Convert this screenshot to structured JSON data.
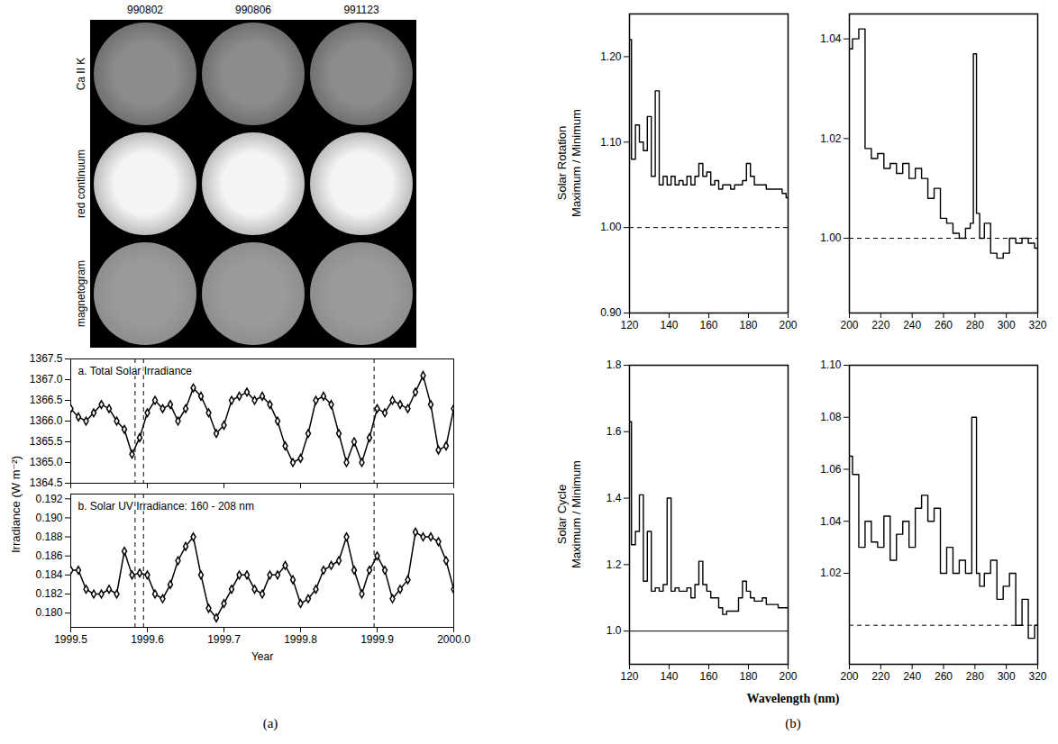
{
  "figure": {
    "panel_labels": [
      "(a)",
      "(b)"
    ],
    "images": {
      "dates": [
        "990802",
        "990806",
        "991123"
      ],
      "rows": [
        "Ca II K",
        "red continuum",
        "magnetogram"
      ]
    },
    "spectra_xlabel": "Wavelength (nm)"
  },
  "chart_data": [
    {
      "type": "line",
      "title": "a. Total Solar Irradiance",
      "ylabel": "Irradiance (W m⁻²)",
      "color": "#000000",
      "marker": "diamond",
      "line_style": "solid",
      "tick_labels": "y",
      "vlines": [
        1999.584,
        1999.595,
        1999.896
      ],
      "x": [
        1999.5,
        1999.51,
        1999.52,
        1999.53,
        1999.54,
        1999.55,
        1999.56,
        1999.57,
        1999.58,
        1999.59,
        1999.6,
        1999.61,
        1999.62,
        1999.63,
        1999.64,
        1999.65,
        1999.66,
        1999.67,
        1999.68,
        1999.69,
        1999.7,
        1999.71,
        1999.72,
        1999.73,
        1999.74,
        1999.75,
        1999.76,
        1999.77,
        1999.78,
        1999.79,
        1999.8,
        1999.81,
        1999.82,
        1999.83,
        1999.84,
        1999.85,
        1999.86,
        1999.87,
        1999.88,
        1999.89,
        1999.9,
        1999.91,
        1999.92,
        1999.93,
        1999.94,
        1999.95,
        1999.96,
        1999.97,
        1999.98,
        1999.99,
        2000.0
      ],
      "values": [
        1366.3,
        1366.1,
        1366.0,
        1366.2,
        1366.4,
        1366.3,
        1366.0,
        1365.8,
        1365.2,
        1365.6,
        1366.2,
        1366.5,
        1366.3,
        1366.4,
        1366.0,
        1366.3,
        1366.8,
        1366.6,
        1366.2,
        1365.7,
        1365.9,
        1366.5,
        1366.6,
        1366.7,
        1366.5,
        1366.6,
        1366.4,
        1366.0,
        1365.4,
        1365.0,
        1365.1,
        1365.7,
        1366.5,
        1366.6,
        1366.4,
        1365.7,
        1365.0,
        1365.5,
        1365.0,
        1365.6,
        1366.3,
        1366.2,
        1366.5,
        1366.4,
        1366.3,
        1366.7,
        1367.1,
        1366.4,
        1365.3,
        1365.4,
        1366.3
      ],
      "xlim": [
        1999.5,
        2000.0
      ],
      "xticks": [
        1999.5,
        1999.6,
        1999.7,
        1999.8,
        1999.9,
        {
          "value": 2000,
          "label": "2000.0"
        }
      ],
      "ylim": [
        1364.5,
        1367.5
      ],
      "yticks": [
        1364.5,
        {
          "value": 1365,
          "label": "1365.0"
        },
        1365.5,
        {
          "value": 1366,
          "label": "1366.0"
        },
        1366.5,
        {
          "value": 1367,
          "label": "1367.0"
        },
        1367.5
      ]
    },
    {
      "type": "line",
      "title": "b. Solar UV Irradiance: 160 - 208 nm",
      "xlabel": "Year",
      "color": "#000000",
      "marker": "diamond",
      "line_style": "solid",
      "vlines": [
        1999.584,
        1999.595,
        1999.896
      ],
      "x": [
        1999.5,
        1999.51,
        1999.52,
        1999.53,
        1999.54,
        1999.55,
        1999.56,
        1999.57,
        1999.58,
        1999.59,
        1999.6,
        1999.61,
        1999.62,
        1999.63,
        1999.64,
        1999.65,
        1999.66,
        1999.67,
        1999.68,
        1999.69,
        1999.7,
        1999.71,
        1999.72,
        1999.73,
        1999.74,
        1999.75,
        1999.76,
        1999.77,
        1999.78,
        1999.79,
        1999.8,
        1999.81,
        1999.82,
        1999.83,
        1999.84,
        1999.85,
        1999.86,
        1999.87,
        1999.88,
        1999.89,
        1999.9,
        1999.91,
        1999.92,
        1999.93,
        1999.94,
        1999.95,
        1999.96,
        1999.97,
        1999.98,
        1999.99,
        2000.0
      ],
      "values": [
        0.1845,
        0.1845,
        0.1825,
        0.182,
        0.182,
        0.1825,
        0.182,
        0.1865,
        0.184,
        0.1842,
        0.184,
        0.182,
        0.1815,
        0.183,
        0.1855,
        0.187,
        0.188,
        0.184,
        0.1805,
        0.1795,
        0.181,
        0.1825,
        0.184,
        0.184,
        0.1825,
        0.182,
        0.184,
        0.184,
        0.185,
        0.1835,
        0.181,
        0.1815,
        0.1825,
        0.1845,
        0.185,
        0.1855,
        0.188,
        0.1845,
        0.182,
        0.1845,
        0.186,
        0.1845,
        0.1815,
        0.1825,
        0.1835,
        0.1885,
        0.188,
        0.188,
        0.1875,
        0.1855,
        0.1825
      ],
      "xlim": [
        1999.5,
        2000.0
      ],
      "xticks": [
        1999.5,
        1999.6,
        1999.7,
        1999.8,
        1999.9,
        {
          "value": 2000,
          "label": "2000.0"
        }
      ],
      "ylim": [
        0.1785,
        0.1925
      ],
      "yticks": [
        {
          "value": 0.18,
          "label": "0.180"
        },
        0.182,
        0.184,
        0.186,
        0.188,
        {
          "value": 0.19,
          "label": "0.190"
        },
        0.192
      ]
    },
    {
      "type": "line",
      "ylabel": [
        "Solar Rotation",
        "Maximum / Minimum"
      ],
      "color": "#000000",
      "line_style": "step",
      "reference": {
        "value": 1,
        "line_style": "dashed"
      },
      "x": [
        120,
        122,
        124,
        126,
        128,
        130,
        132,
        134,
        136,
        138,
        140,
        142,
        144,
        146,
        148,
        150,
        152,
        154,
        156,
        158,
        160,
        162,
        164,
        166,
        168,
        170,
        172,
        174,
        176,
        178,
        180,
        182,
        184,
        186,
        188,
        190,
        192,
        194,
        196,
        198,
        200
      ],
      "values": [
        1.22,
        1.08,
        1.12,
        1.1,
        1.09,
        1.13,
        1.06,
        1.16,
        1.05,
        1.06,
        1.05,
        1.06,
        1.05,
        1.055,
        1.05,
        1.06,
        1.05,
        1.06,
        1.075,
        1.06,
        1.065,
        1.05,
        1.055,
        1.045,
        1.05,
        1.05,
        1.045,
        1.05,
        1.05,
        1.055,
        1.075,
        1.06,
        1.05,
        1.05,
        1.05,
        1.045,
        1.045,
        1.045,
        1.045,
        1.04,
        1.035
      ],
      "xlim": [
        120,
        200
      ],
      "xticks": [
        120,
        140,
        160,
        180,
        200
      ],
      "ylim": [
        0.9,
        1.25
      ],
      "yticks": [
        {
          "value": 0.9,
          "label": "0.90"
        },
        {
          "value": 1,
          "label": "1.00"
        },
        {
          "value": 1.1,
          "label": "1.10"
        },
        {
          "value": 1.2,
          "label": "1.20"
        }
      ]
    },
    {
      "type": "line",
      "color": "#000000",
      "line_style": "step",
      "reference": {
        "value": 1,
        "line_style": "dashed"
      },
      "x": [
        200,
        204,
        208,
        212,
        216,
        220,
        224,
        228,
        232,
        236,
        240,
        244,
        248,
        252,
        256,
        260,
        264,
        268,
        272,
        276,
        278,
        280,
        282,
        284,
        288,
        292,
        296,
        300,
        304,
        308,
        312,
        316,
        320
      ],
      "values": [
        1.038,
        1.04,
        1.042,
        1.018,
        1.016,
        1.017,
        1.014,
        1.015,
        1.013,
        1.015,
        1.012,
        1.014,
        1.012,
        1.008,
        1.01,
        1.004,
        1.003,
        1.001,
        1.0,
        1.002,
        1.003,
        1.037,
        1.005,
        1.0,
        1.003,
        0.997,
        0.996,
        0.997,
        1.0,
        0.999,
        1.0,
        0.999,
        0.998
      ],
      "xlim": [
        200,
        320
      ],
      "xticks": [
        200,
        220,
        240,
        260,
        280,
        300,
        320
      ],
      "ylim": [
        0.985,
        1.045
      ],
      "yticks": [
        {
          "value": 1,
          "label": "1.00"
        },
        1.02,
        1.04
      ]
    },
    {
      "type": "line",
      "ylabel": [
        "Solar Cycle",
        "Maximum / Minimum"
      ],
      "color": "#000000",
      "line_style": "step",
      "reference": {
        "value": 1,
        "line_style": "solid"
      },
      "x": [
        120,
        122,
        124,
        126,
        128,
        130,
        132,
        134,
        136,
        138,
        140,
        142,
        144,
        146,
        148,
        150,
        152,
        154,
        156,
        158,
        160,
        162,
        164,
        166,
        168,
        170,
        172,
        174,
        176,
        178,
        180,
        182,
        184,
        186,
        188,
        190,
        192,
        194,
        196,
        198,
        200
      ],
      "values": [
        1.63,
        1.26,
        1.3,
        1.41,
        1.15,
        1.3,
        1.12,
        1.13,
        1.12,
        1.14,
        1.4,
        1.12,
        1.13,
        1.12,
        1.12,
        1.13,
        1.1,
        1.14,
        1.21,
        1.14,
        1.12,
        1.1,
        1.1,
        1.07,
        1.05,
        1.06,
        1.06,
        1.06,
        1.1,
        1.15,
        1.12,
        1.1,
        1.09,
        1.09,
        1.1,
        1.08,
        1.08,
        1.08,
        1.07,
        1.07,
        1.07
      ],
      "xlim": [
        120,
        200
      ],
      "xticks": [
        120,
        140,
        160,
        180,
        200
      ],
      "ylim": [
        0.9,
        1.8
      ],
      "yticks": [
        {
          "value": 1,
          "label": "1.0"
        },
        1.2,
        1.4,
        1.6,
        1.8
      ]
    },
    {
      "type": "line",
      "color": "#000000",
      "line_style": "step",
      "reference": {
        "value": 1,
        "line_style": "dashed"
      },
      "x": [
        200,
        204,
        208,
        212,
        216,
        220,
        224,
        228,
        232,
        236,
        240,
        244,
        248,
        252,
        256,
        260,
        264,
        268,
        272,
        276,
        280,
        282,
        284,
        288,
        292,
        296,
        300,
        304,
        308,
        312,
        316,
        320
      ],
      "values": [
        1.065,
        1.058,
        1.03,
        1.04,
        1.032,
        1.03,
        1.042,
        1.025,
        1.035,
        1.04,
        1.03,
        1.045,
        1.05,
        1.04,
        1.045,
        1.02,
        1.03,
        1.02,
        1.025,
        1.02,
        1.08,
        1.02,
        1.015,
        1.02,
        1.025,
        1.01,
        1.015,
        1.02,
        1.0,
        1.01,
        0.995,
        1.0
      ],
      "xlim": [
        200,
        320
      ],
      "xticks": [
        200,
        220,
        240,
        260,
        280,
        300,
        320
      ],
      "ylim": [
        0.985,
        1.1
      ],
      "yticks": [
        1.02,
        1.04,
        1.06,
        1.08,
        {
          "value": 1.1,
          "label": "1.10"
        }
      ]
    }
  ]
}
